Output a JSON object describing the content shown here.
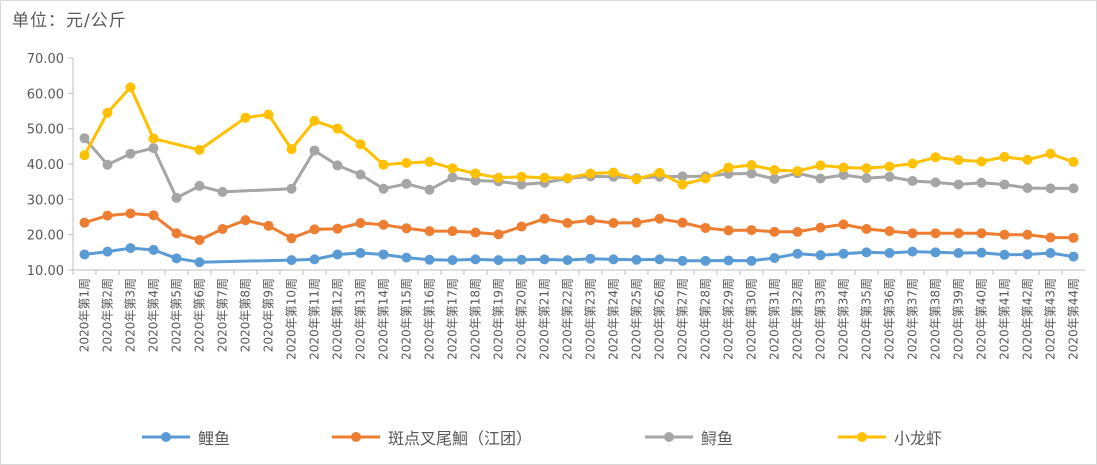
{
  "unit_label": "单位：元/公斤",
  "chart_data": {
    "type": "line",
    "y_axis_label": "单位：元/公斤",
    "ylim": [
      10,
      70
    ],
    "yticks": [
      "10.00",
      "20.00",
      "30.00",
      "40.00",
      "50.00",
      "60.00",
      "70.00"
    ],
    "grid": false,
    "legend_position": "bottom",
    "categories": [
      "2020年第1周",
      "2020年第2周",
      "2020年第3周",
      "2020年第4周",
      "2020年第5周",
      "2020年第6周",
      "2020年第7周",
      "2020年第8周",
      "2020年第9周",
      "2020年第10周",
      "2020年第11周",
      "2020年第12周",
      "2020年第13周",
      "2020年第14周",
      "2020年第15周",
      "2020年第16周",
      "2020年第17周",
      "2020年第18周",
      "2020年第19周",
      "2020年第20周",
      "2020年第21周",
      "2020年第22周",
      "2020年第23周",
      "2020年第24周",
      "2020年第25周",
      "2020年第26周",
      "2020年第27周",
      "2020年第28周",
      "2020年第29周",
      "2020年第30周",
      "2020年第31周",
      "2020年第32周",
      "2020年第33周",
      "2020年第34周",
      "2020年第35周",
      "2020年第36周",
      "2020年第37周",
      "2020年第38周",
      "2020年第39周",
      "2020年第40周",
      "2020年第41周",
      "2020年第42周",
      "2020年第43周",
      "2020年第44周"
    ],
    "series": [
      {
        "name": "鲤鱼",
        "color": "#5b9bd5",
        "values": [
          14.4,
          15.2,
          16.2,
          15.7,
          13.3,
          12.2,
          null,
          null,
          null,
          12.8,
          13.0,
          14.4,
          14.8,
          14.4,
          13.5,
          12.9,
          12.8,
          13.0,
          12.8,
          12.9,
          13.0,
          12.8,
          13.2,
          13.0,
          12.9,
          13.0,
          12.6,
          12.6,
          12.7,
          12.6,
          13.4,
          14.6,
          14.2,
          14.6,
          15.0,
          14.8,
          15.2,
          15.0,
          14.8,
          14.9,
          14.3,
          14.4,
          14.8,
          13.8
        ]
      },
      {
        "name": "斑点叉尾鮰（江团）",
        "color": "#ed7d31",
        "values": [
          23.4,
          25.4,
          26.0,
          25.5,
          20.4,
          18.5,
          21.6,
          24.1,
          22.5,
          19.0,
          21.5,
          21.7,
          23.3,
          22.8,
          21.8,
          21.0,
          21.0,
          20.6,
          20.1,
          22.3,
          24.5,
          23.3,
          24.1,
          23.3,
          23.4,
          24.5,
          23.4,
          21.9,
          21.2,
          21.3,
          20.8,
          20.8,
          22.0,
          22.9,
          21.6,
          21.0,
          20.4,
          20.4,
          20.4,
          20.4,
          20.0,
          20.0,
          19.2,
          19.1
        ]
      },
      {
        "name": "鲟鱼",
        "color": "#a5a5a5",
        "values": [
          47.3,
          39.8,
          42.9,
          44.5,
          30.4,
          33.8,
          32.1,
          null,
          null,
          33.0,
          43.8,
          39.6,
          37.0,
          33.0,
          34.4,
          32.7,
          36.2,
          35.3,
          35.1,
          34.2,
          34.7,
          35.9,
          36.5,
          36.4,
          36.0,
          36.4,
          36.5,
          36.5,
          37.2,
          37.3,
          35.8,
          37.4,
          35.9,
          36.9,
          36.0,
          36.4,
          35.2,
          34.8,
          34.2,
          34.7,
          34.2,
          33.2,
          33.1,
          33.1
        ]
      },
      {
        "name": "小龙虾",
        "color": "#ffc000",
        "values": [
          42.5,
          54.5,
          61.7,
          47.2,
          null,
          44.0,
          null,
          53.1,
          54.0,
          44.2,
          52.2,
          50.0,
          45.6,
          39.8,
          40.3,
          40.6,
          38.8,
          37.3,
          36.1,
          36.4,
          36.1,
          36.0,
          37.3,
          37.6,
          35.7,
          37.5,
          34.2,
          35.9,
          39.0,
          39.7,
          38.3,
          38.0,
          39.6,
          39.0,
          38.8,
          39.3,
          40.1,
          41.9,
          41.1,
          40.7,
          42.0,
          41.2,
          42.9,
          40.6
        ]
      }
    ]
  }
}
